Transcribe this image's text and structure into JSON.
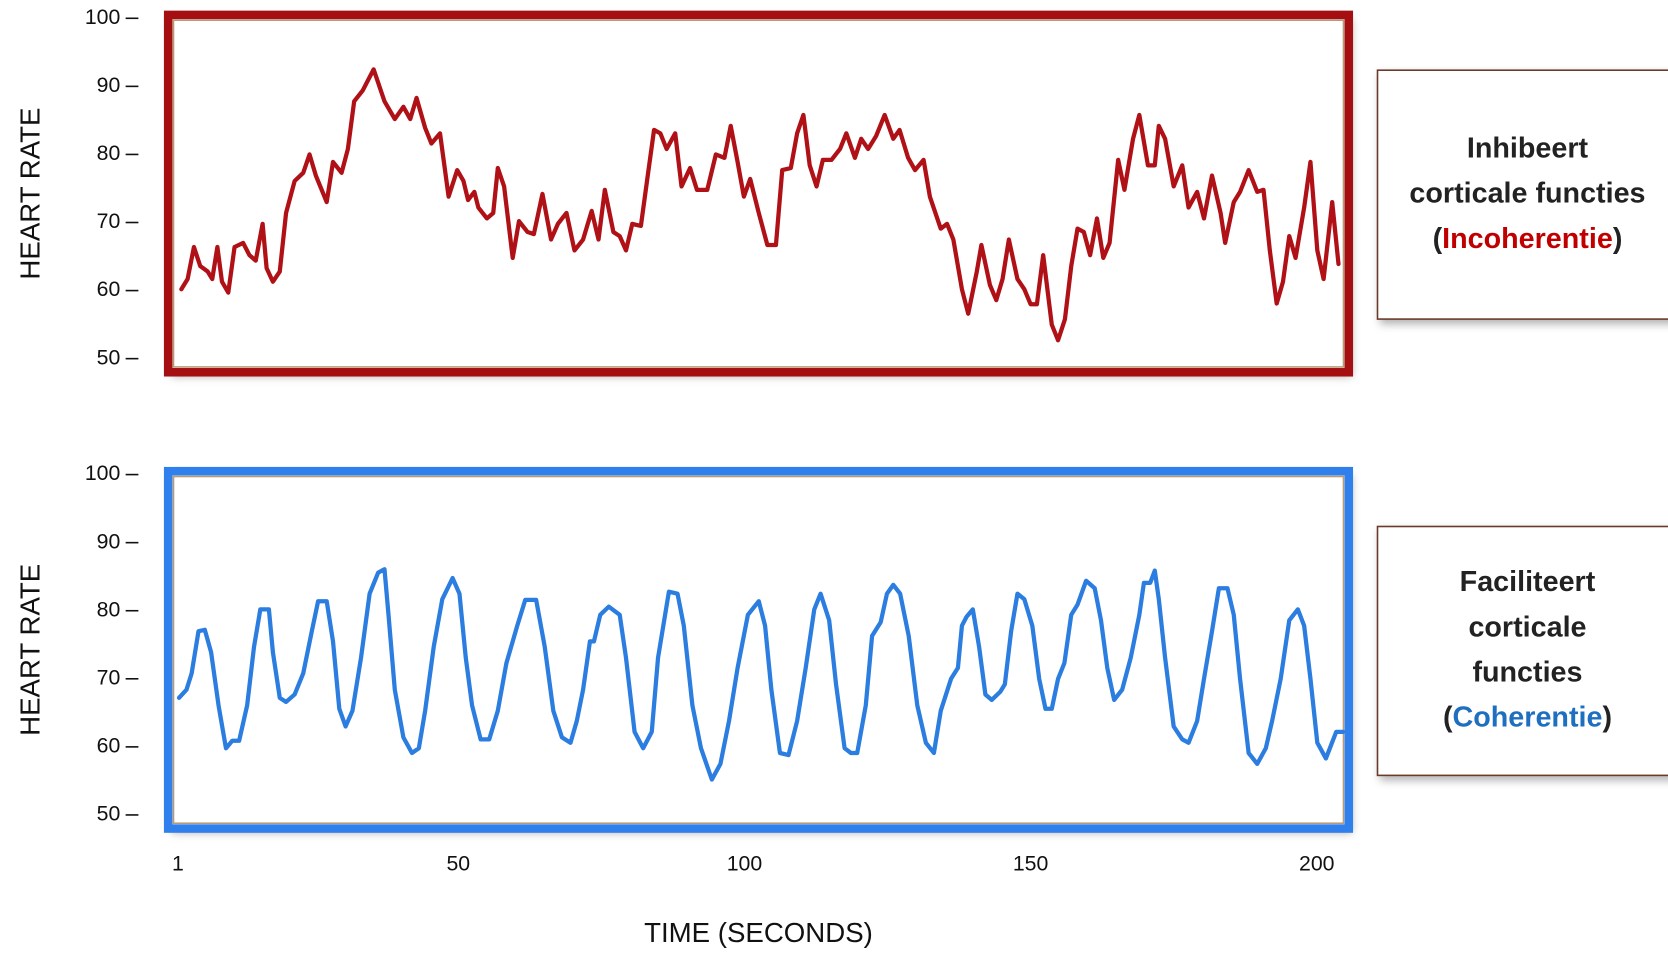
{
  "chart_data": [
    {
      "type": "line",
      "y_label": "HEART RATE",
      "color": "#b01116",
      "frame_color": "#a50f12",
      "xlim": [
        -0.7,
        205.6
      ],
      "ylim": [
        48,
        100.5
      ],
      "yticks": [
        100,
        90,
        80,
        70,
        60,
        50
      ],
      "annotation": [
        [
          "Inhibeert"
        ],
        [
          "corticale functies"
        ],
        [
          "(",
          {
            "text": "Incoherentie",
            "color": "#c00000"
          },
          ")"
        ]
      ],
      "x": [
        1.6,
        2.7,
        3.8,
        4.9,
        6.2,
        7.0,
        7.9,
        8.7,
        9.8,
        10.9,
        12.4,
        13.5,
        14.6,
        15.8,
        16.5,
        17.6,
        18.8,
        19.9,
        21.4,
        22.9,
        24.0,
        25.1,
        27.0,
        28.1,
        29.6,
        30.7,
        31.8,
        33.3,
        35.2,
        37.1,
        38.9,
        40.4,
        41.6,
        42.7,
        44.2,
        45.3,
        46.8,
        48.3,
        49.8,
        50.9,
        51.7,
        52.8,
        53.5,
        55.0,
        56.1,
        56.9,
        58.0,
        59.5,
        60.6,
        62.1,
        63.2,
        64.7,
        66.2,
        67.4,
        68.9,
        70.3,
        71.8,
        73.3,
        74.5,
        75.6,
        77.1,
        78.2,
        79.3,
        80.4,
        81.9,
        83.1,
        84.2,
        85.3,
        86.4,
        87.9,
        89.0,
        90.5,
        91.7,
        93.5,
        95.0,
        96.5,
        97.6,
        98.8,
        99.9,
        101.0,
        102.5,
        104.0,
        105.5,
        106.6,
        108.1,
        109.2,
        110.3,
        111.4,
        112.6,
        113.7,
        115.2,
        116.7,
        117.8,
        119.3,
        120.4,
        121.6,
        123.0,
        124.5,
        126.0,
        127.1,
        128.6,
        129.8,
        131.3,
        132.4,
        134.3,
        135.4,
        136.5,
        138.0,
        139.1,
        140.6,
        141.4,
        142.9,
        144.0,
        145.1,
        146.2,
        147.7,
        148.9,
        150.0,
        151.1,
        152.2,
        153.7,
        154.8,
        156.0,
        157.1,
        158.2,
        159.3,
        160.4,
        161.6,
        162.7,
        163.8,
        165.3,
        166.4,
        167.9,
        169.0,
        170.5,
        171.7,
        172.4,
        173.5,
        175.0,
        176.5,
        177.6,
        179.1,
        180.3,
        181.7,
        183.2,
        184.0,
        185.5,
        186.6,
        188.1,
        189.6,
        190.7,
        191.8,
        193.0,
        194.1,
        195.2,
        196.3,
        197.8,
        198.9,
        200.1,
        201.2,
        202.7,
        203.8
      ],
      "values": [
        60.2,
        61.7,
        66.4,
        63.6,
        62.8,
        61.7,
        66.4,
        61.3,
        59.7,
        66.4,
        67.0,
        65.2,
        64.4,
        69.8,
        63.3,
        61.3,
        62.8,
        71.4,
        76.1,
        77.3,
        80.0,
        76.9,
        73.0,
        78.9,
        77.3,
        80.8,
        87.8,
        89.4,
        92.5,
        87.8,
        85.2,
        87.0,
        85.2,
        88.3,
        83.9,
        81.6,
        83.1,
        73.8,
        77.7,
        76.1,
        73.3,
        74.5,
        72.2,
        70.6,
        71.4,
        78.0,
        75.3,
        64.8,
        70.2,
        68.6,
        68.3,
        74.2,
        67.5,
        69.8,
        71.4,
        65.9,
        67.5,
        71.7,
        67.5,
        74.8,
        68.6,
        68.0,
        65.9,
        69.8,
        69.5,
        76.9,
        83.6,
        83.1,
        80.8,
        83.1,
        75.3,
        78.0,
        74.8,
        74.8,
        80.0,
        79.5,
        84.2,
        78.9,
        73.8,
        76.4,
        71.4,
        66.7,
        66.7,
        77.7,
        78.0,
        83.1,
        85.8,
        78.4,
        75.3,
        79.2,
        79.2,
        80.8,
        83.1,
        79.5,
        82.3,
        80.8,
        82.7,
        85.8,
        82.3,
        83.6,
        79.5,
        77.7,
        79.2,
        73.8,
        69.1,
        69.8,
        67.5,
        60.2,
        56.6,
        62.8,
        66.7,
        60.8,
        58.6,
        61.7,
        67.5,
        61.7,
        60.2,
        58.0,
        58.0,
        65.2,
        55.0,
        52.7,
        55.8,
        63.6,
        69.1,
        68.6,
        65.2,
        70.6,
        64.8,
        67.0,
        79.2,
        74.8,
        82.3,
        85.8,
        78.4,
        78.4,
        84.2,
        82.3,
        75.3,
        78.4,
        72.2,
        74.5,
        70.6,
        76.9,
        71.4,
        67.0,
        73.0,
        74.5,
        77.7,
        74.5,
        74.8,
        65.9,
        58.1,
        61.3,
        68.0,
        64.8,
        72.2,
        78.9,
        65.9,
        61.7,
        73.0,
        63.9
      ]
    },
    {
      "type": "line",
      "y_label": "HEART RATE",
      "x_label": "TIME (SECONDS)",
      "color": "#2b7de0",
      "frame_color": "#2f80ed",
      "xlim": [
        -0.7,
        205.6
      ],
      "ylim": [
        48,
        100.5
      ],
      "yticks": [
        100,
        90,
        80,
        70,
        60,
        50
      ],
      "xticks": [
        1,
        50,
        100,
        150,
        200
      ],
      "annotation": [
        [
          "Faciliteert"
        ],
        [
          "corticale"
        ],
        [
          "functies"
        ],
        [
          "(",
          {
            "text": "Coherentie",
            "color": "#1f6fc0"
          },
          ")"
        ]
      ],
      "x": [
        1.2,
        2.5,
        3.4,
        4.6,
        5.7,
        6.8,
        8.1,
        9.4,
        10.5,
        11.7,
        13.1,
        14.3,
        15.4,
        16.9,
        17.6,
        18.8,
        19.9,
        21.4,
        22.9,
        24.4,
        25.5,
        27.0,
        28.1,
        29.2,
        30.3,
        31.5,
        33.0,
        34.5,
        36.0,
        37.1,
        37.8,
        38.9,
        40.4,
        41.9,
        43.1,
        44.2,
        45.7,
        47.2,
        49.0,
        50.2,
        51.3,
        52.4,
        53.9,
        55.4,
        56.9,
        58.4,
        60.3,
        61.7,
        63.6,
        65.1,
        66.6,
        68.1,
        69.6,
        70.7,
        71.8,
        73.0,
        73.7,
        74.8,
        76.3,
        78.2,
        79.3,
        80.8,
        82.3,
        83.8,
        84.9,
        86.8,
        88.3,
        89.4,
        90.9,
        92.4,
        94.3,
        95.8,
        97.3,
        98.8,
        100.6,
        102.5,
        103.6,
        104.7,
        106.2,
        107.7,
        109.2,
        110.7,
        112.2,
        113.3,
        114.8,
        116.0,
        117.5,
        118.6,
        119.7,
        121.2,
        122.3,
        123.8,
        124.9,
        126.0,
        127.2,
        128.7,
        130.2,
        131.7,
        133.1,
        134.3,
        136.1,
        137.3,
        138.0,
        138.8,
        139.9,
        141.0,
        142.1,
        143.2,
        144.7,
        145.5,
        146.6,
        147.7,
        148.9,
        150.3,
        151.5,
        152.6,
        153.7,
        154.8,
        155.9,
        157.1,
        158.2,
        159.7,
        161.2,
        162.3,
        163.4,
        164.6,
        166.0,
        167.5,
        169.0,
        169.8,
        170.9,
        171.7,
        172.4,
        173.5,
        175.0,
        176.5,
        177.6,
        179.1,
        180.3,
        181.7,
        182.9,
        184.4,
        185.5,
        186.6,
        188.1,
        189.6,
        191.1,
        192.2,
        193.7,
        195.2,
        196.7,
        197.8,
        198.9,
        200.1,
        201.6,
        203.4,
        204.6
      ],
      "values": [
        67.2,
        68.4,
        70.8,
        77.0,
        77.2,
        73.9,
        66.1,
        59.8,
        60.9,
        60.9,
        66.1,
        74.7,
        80.2,
        80.2,
        73.9,
        67.2,
        66.6,
        67.7,
        70.8,
        77.0,
        81.4,
        81.4,
        75.5,
        65.6,
        63.0,
        65.3,
        73.1,
        82.5,
        85.6,
        86.1,
        79.4,
        68.4,
        61.4,
        59.1,
        59.8,
        65.3,
        74.7,
        81.7,
        84.8,
        82.5,
        73.1,
        66.1,
        61.1,
        61.1,
        65.3,
        72.3,
        77.8,
        81.6,
        81.6,
        74.7,
        65.3,
        61.4,
        60.6,
        63.8,
        68.4,
        75.5,
        75.5,
        79.4,
        80.6,
        79.4,
        73.1,
        62.2,
        59.8,
        62.2,
        73.1,
        82.8,
        82.5,
        77.8,
        66.1,
        59.8,
        55.2,
        57.5,
        63.8,
        71.6,
        79.4,
        81.4,
        77.8,
        68.4,
        59.1,
        58.8,
        63.8,
        71.6,
        80.2,
        82.5,
        78.6,
        69.2,
        59.8,
        59.1,
        59.1,
        66.1,
        76.3,
        78.3,
        82.5,
        83.8,
        82.5,
        76.3,
        66.1,
        60.6,
        59.1,
        65.3,
        70.0,
        71.6,
        77.8,
        79.1,
        80.2,
        74.7,
        67.7,
        66.9,
        68.1,
        69.2,
        77.0,
        82.5,
        81.7,
        77.8,
        70.0,
        65.6,
        65.6,
        70.0,
        72.3,
        79.4,
        80.9,
        84.4,
        83.3,
        78.6,
        71.6,
        66.9,
        68.4,
        73.1,
        79.4,
        84.1,
        84.1,
        85.9,
        81.7,
        73.1,
        63.0,
        61.1,
        60.6,
        63.8,
        70.0,
        77.0,
        83.3,
        83.3,
        79.4,
        70.0,
        59.1,
        57.5,
        59.8,
        63.8,
        70.0,
        78.6,
        80.2,
        77.8,
        70.0,
        60.6,
        58.3,
        62.2,
        62.2
      ]
    }
  ]
}
